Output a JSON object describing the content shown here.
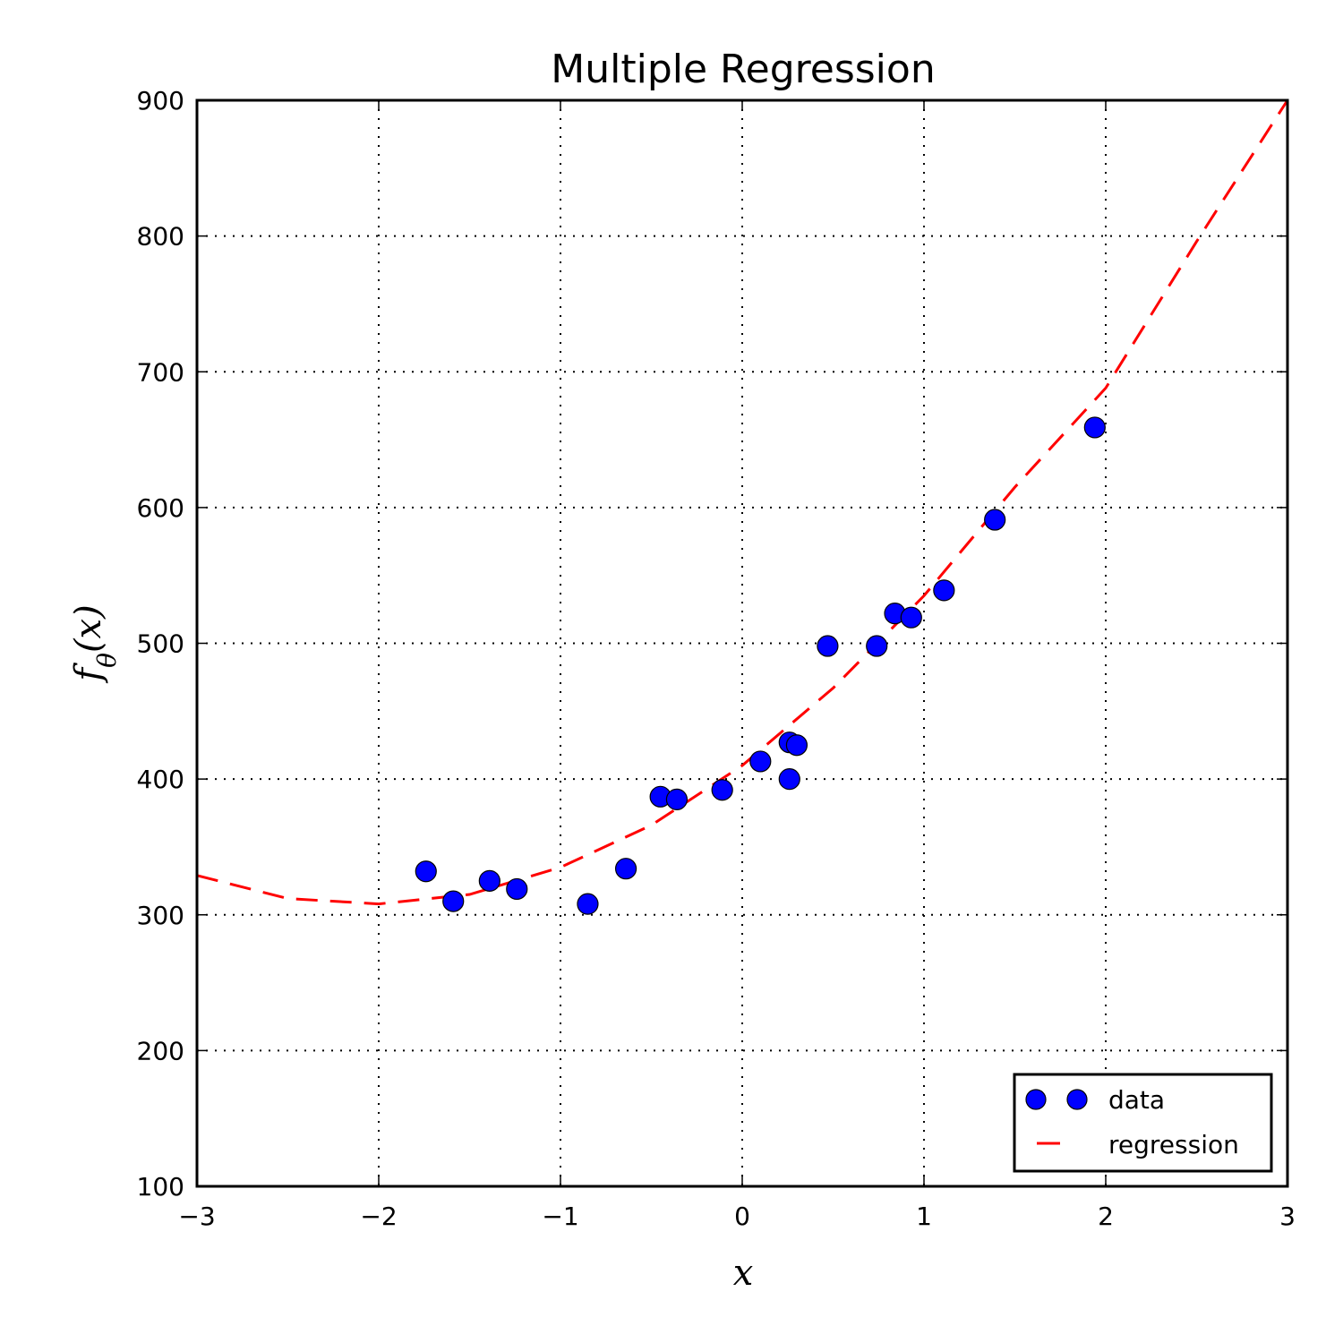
{
  "chart_data": {
    "type": "scatter",
    "title": "Multiple Regression",
    "xlabel": "x",
    "ylabel": "f_θ(x)",
    "xlim": [
      -3,
      3
    ],
    "ylim": [
      100,
      900
    ],
    "xticks": [
      -3,
      -2,
      -1,
      0,
      1,
      2,
      3
    ],
    "xtick_labels": [
      "−3",
      "−2",
      "−1",
      "0",
      "1",
      "2",
      "3"
    ],
    "yticks": [
      100,
      200,
      300,
      400,
      500,
      600,
      700,
      800,
      900
    ],
    "ytick_labels": [
      "100",
      "200",
      "300",
      "400",
      "500",
      "600",
      "700",
      "800",
      "900"
    ],
    "grid": true,
    "legend_position": "lower-right",
    "series": [
      {
        "name": "data",
        "kind": "scatter",
        "color": "#0000ff",
        "points": [
          [
            -1.74,
            332
          ],
          [
            -1.59,
            310
          ],
          [
            -1.39,
            325
          ],
          [
            -1.24,
            319
          ],
          [
            -0.85,
            308
          ],
          [
            -0.64,
            334
          ],
          [
            -0.45,
            387
          ],
          [
            -0.36,
            385
          ],
          [
            -0.11,
            392
          ],
          [
            0.1,
            413
          ],
          [
            0.26,
            427
          ],
          [
            0.3,
            425
          ],
          [
            0.26,
            400
          ],
          [
            0.47,
            498
          ],
          [
            0.74,
            498
          ],
          [
            0.84,
            522
          ],
          [
            0.93,
            519
          ],
          [
            1.11,
            539
          ],
          [
            1.39,
            591
          ],
          [
            1.94,
            659
          ]
        ]
      },
      {
        "name": "regression",
        "kind": "line",
        "color": "#ff0000",
        "style": "dashed",
        "points": [
          [
            -3.0,
            329
          ],
          [
            -2.5,
            312
          ],
          [
            -2.0,
            308
          ],
          [
            -1.5,
            315
          ],
          [
            -1.0,
            335
          ],
          [
            -0.5,
            366
          ],
          [
            0.0,
            410
          ],
          [
            0.5,
            467
          ],
          [
            1.0,
            535
          ],
          [
            1.5,
            615
          ],
          [
            2.0,
            688
          ],
          [
            2.5,
            796
          ],
          [
            3.0,
            900
          ]
        ]
      }
    ]
  }
}
